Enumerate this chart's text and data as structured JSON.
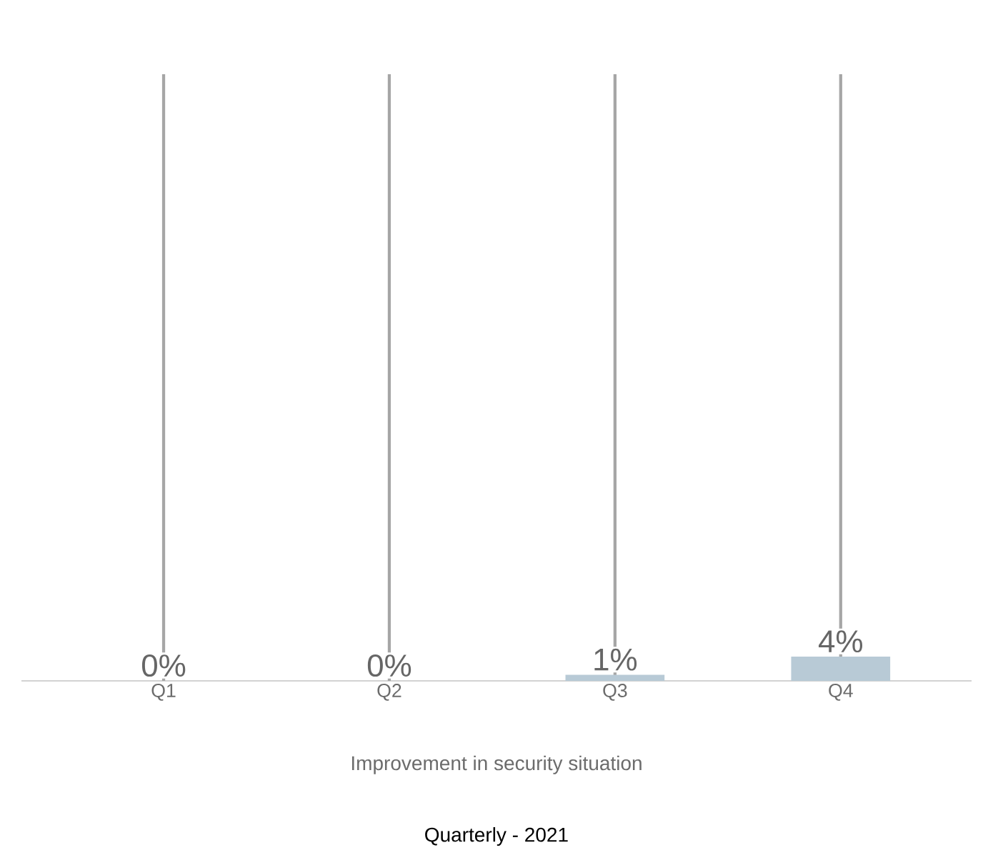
{
  "chart_data": {
    "type": "bar",
    "xlabel": "Improvement in security situation",
    "categories": [
      "Q1",
      "Q2",
      "Q3",
      "Q4"
    ],
    "values": [
      0,
      0,
      1,
      4
    ],
    "value_labels": [
      "0%",
      "0%",
      "1%",
      "4%"
    ],
    "color": "#b8cad6",
    "ylim": [
      0,
      100
    ],
    "grid": "x",
    "annotations": [
      "Quarterly - 2021"
    ]
  }
}
